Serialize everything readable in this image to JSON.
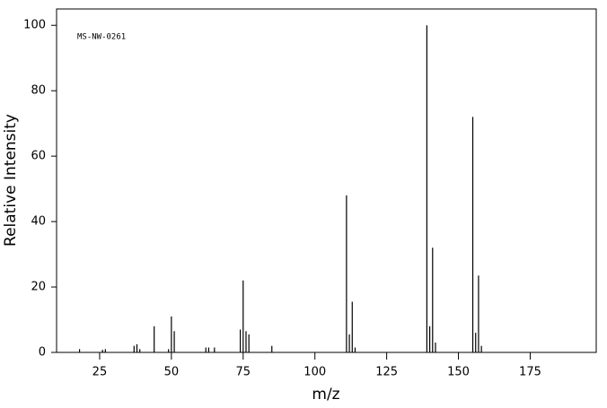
{
  "chart_data": {
    "type": "bar",
    "annotation": "MS-NW-0261",
    "x_label": "m/z",
    "y_label": "Relative Intensity",
    "x": [
      18,
      26,
      27,
      37,
      38,
      39,
      44,
      49,
      50,
      51,
      62,
      63,
      65,
      74,
      75,
      76,
      77,
      85,
      111,
      112,
      113,
      114,
      139,
      140,
      141,
      142,
      155,
      156,
      157,
      158
    ],
    "values": [
      1,
      0.8,
      1,
      2,
      2.5,
      1,
      8,
      1,
      11,
      6.5,
      1.5,
      1.5,
      1.5,
      7,
      22,
      6.5,
      5.5,
      2,
      48,
      5.5,
      15.5,
      1.5,
      100,
      8,
      32,
      3,
      72,
      6,
      23.5,
      2
    ],
    "color": "#000000",
    "xlim": [
      10,
      198
    ],
    "ylim": [
      0,
      105
    ],
    "xticks": [
      25,
      50,
      75,
      100,
      125,
      150,
      175
    ],
    "yticks": [
      0,
      20,
      40,
      60,
      80,
      100
    ]
  }
}
